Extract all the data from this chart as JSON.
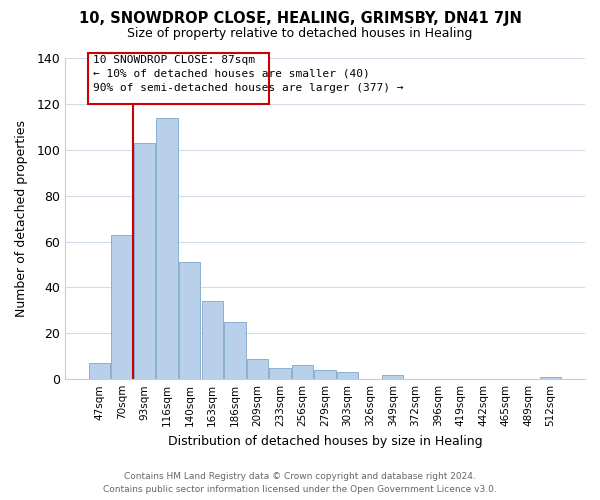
{
  "title": "10, SNOWDROP CLOSE, HEALING, GRIMSBY, DN41 7JN",
  "subtitle": "Size of property relative to detached houses in Healing",
  "xlabel": "Distribution of detached houses by size in Healing",
  "ylabel": "Number of detached properties",
  "bar_color": "#b8d0ea",
  "bar_edge_color": "#8ab0d0",
  "categories": [
    "47sqm",
    "70sqm",
    "93sqm",
    "116sqm",
    "140sqm",
    "163sqm",
    "186sqm",
    "209sqm",
    "233sqm",
    "256sqm",
    "279sqm",
    "303sqm",
    "326sqm",
    "349sqm",
    "372sqm",
    "396sqm",
    "419sqm",
    "442sqm",
    "465sqm",
    "489sqm",
    "512sqm"
  ],
  "values": [
    7,
    63,
    103,
    114,
    51,
    34,
    25,
    9,
    5,
    6,
    4,
    3,
    0,
    2,
    0,
    0,
    0,
    0,
    0,
    0,
    1
  ],
  "ylim": [
    0,
    140
  ],
  "yticks": [
    0,
    20,
    40,
    60,
    80,
    100,
    120,
    140
  ],
  "red_line_color": "#cc0000",
  "annotation_line1": "10 SNOWDROP CLOSE: 87sqm",
  "annotation_line2": "← 10% of detached houses are smaller (40)",
  "annotation_line3": "90% of semi-detached houses are larger (377) →",
  "footer_line1": "Contains HM Land Registry data © Crown copyright and database right 2024.",
  "footer_line2": "Contains public sector information licensed under the Open Government Licence v3.0.",
  "background_color": "#ffffff",
  "grid_color": "#d0dce8"
}
